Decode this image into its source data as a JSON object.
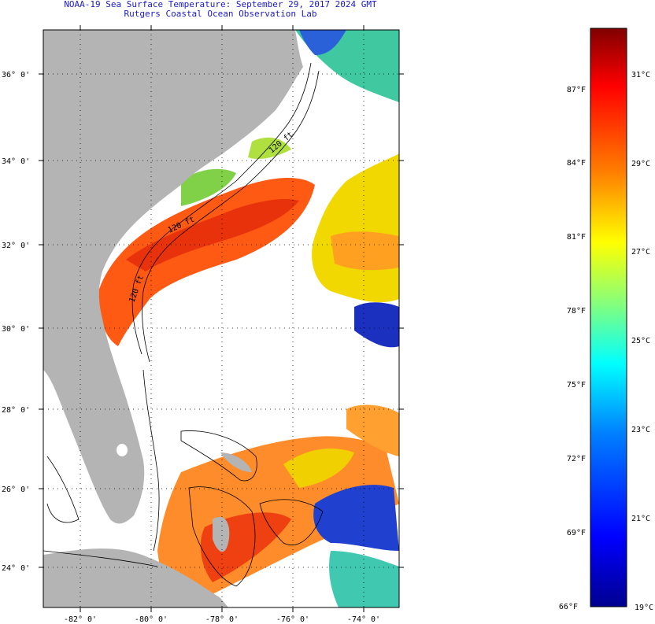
{
  "title": {
    "line1": "NOAA-19 Sea Surface Temperature:  September 29, 2017 2024 GMT",
    "line2": "Rutgers Coastal Ocean Observation Lab"
  },
  "map": {
    "lat_labels": [
      "36° 0'",
      "34° 0'",
      "32° 0'",
      "30° 0'",
      "28° 0'",
      "26° 0'",
      "24° 0'"
    ],
    "lon_labels": [
      "-82° 0'",
      "-80° 0'",
      "-78° 0'",
      "-76° 0'",
      "-74° 0'"
    ],
    "contour_labels": [
      "120 ft",
      "120 ft",
      "120 ft"
    ],
    "colors": {
      "land": "#b4b4b4",
      "ocean_nodata": "#ffffff",
      "warm": "#ff5a14",
      "hot": "#ee3a10",
      "yellow": "#f0e000",
      "green": "#7fd04a",
      "cyan": "#30c8e8",
      "blue": "#2040d0",
      "deep_blue": "#101890"
    }
  },
  "colorbar": {
    "f_labels": [
      "87°F",
      "84°F",
      "81°F",
      "78°F",
      "75°F",
      "72°F",
      "69°F",
      "66°F"
    ],
    "c_labels": [
      "31°C",
      "29°C",
      "27°C",
      "25°C",
      "23°C",
      "21°C",
      "19°C"
    ],
    "range_c": [
      19,
      32.5
    ],
    "gradient": [
      "#00008f",
      "#0000ff",
      "#0080ff",
      "#00ffff",
      "#80ff80",
      "#ffff00",
      "#ff8000",
      "#ff0000",
      "#800000"
    ]
  }
}
